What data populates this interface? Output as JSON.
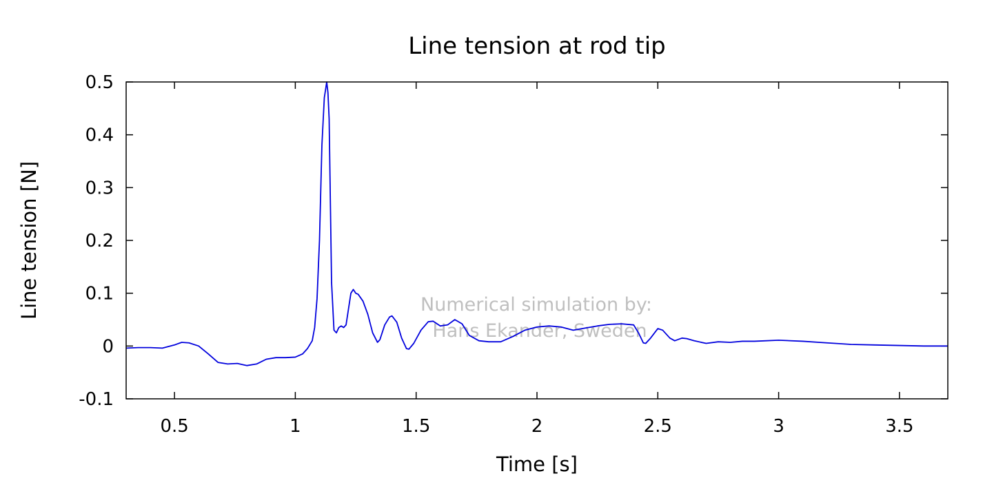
{
  "chart_data": {
    "type": "line",
    "title": "Line tension at rod tip",
    "xlabel": "Time [s]",
    "ylabel": "Line tension [N]",
    "xlim": [
      0.3,
      3.7
    ],
    "ylim": [
      -0.1,
      0.5
    ],
    "x_ticks": [
      0.5,
      1,
      1.5,
      2,
      2.5,
      3,
      3.5
    ],
    "x_tick_labels": [
      "0.5",
      "1",
      "1.5",
      "2",
      "2.5",
      "3",
      "3.5"
    ],
    "y_ticks": [
      -0.1,
      0,
      0.1,
      0.2,
      0.3,
      0.4,
      0.5
    ],
    "y_tick_labels": [
      "-0.1",
      "0",
      "0.1",
      "0.2",
      "0.3",
      "0.4",
      "0.5"
    ],
    "grid": false,
    "legend": "none",
    "annotations": [
      "Numerical simulation by:",
      "Hans Ekander, Sweden"
    ],
    "series": [
      {
        "color": "#0000dd",
        "x": [
          0.3,
          0.35,
          0.4,
          0.45,
          0.5,
          0.53,
          0.56,
          0.6,
          0.64,
          0.68,
          0.72,
          0.76,
          0.8,
          0.84,
          0.88,
          0.92,
          0.96,
          1.0,
          1.03,
          1.05,
          1.07,
          1.08,
          1.09,
          1.1,
          1.11,
          1.12,
          1.13,
          1.135,
          1.14,
          1.15,
          1.16,
          1.17,
          1.18,
          1.19,
          1.2,
          1.21,
          1.22,
          1.23,
          1.24,
          1.25,
          1.26,
          1.28,
          1.3,
          1.32,
          1.34,
          1.35,
          1.37,
          1.39,
          1.4,
          1.42,
          1.44,
          1.46,
          1.47,
          1.49,
          1.52,
          1.55,
          1.57,
          1.6,
          1.63,
          1.66,
          1.69,
          1.72,
          1.76,
          1.8,
          1.85,
          1.9,
          1.95,
          2.0,
          2.05,
          2.1,
          2.15,
          2.2,
          2.25,
          2.3,
          2.35,
          2.4,
          2.42,
          2.44,
          2.45,
          2.47,
          2.5,
          2.52,
          2.55,
          2.57,
          2.6,
          2.62,
          2.65,
          2.7,
          2.75,
          2.8,
          2.85,
          2.9,
          3.0,
          3.1,
          3.2,
          3.3,
          3.4,
          3.5,
          3.6,
          3.7
        ],
        "y": [
          -0.004,
          -0.003,
          -0.003,
          -0.004,
          0.002,
          0.007,
          0.006,
          0.0,
          -0.015,
          -0.031,
          -0.034,
          -0.033,
          -0.037,
          -0.034,
          -0.025,
          -0.022,
          -0.022,
          -0.021,
          -0.015,
          -0.005,
          0.01,
          0.035,
          0.09,
          0.2,
          0.38,
          0.47,
          0.5,
          0.48,
          0.43,
          0.12,
          0.03,
          0.025,
          0.035,
          0.038,
          0.035,
          0.04,
          0.07,
          0.1,
          0.107,
          0.1,
          0.098,
          0.085,
          0.06,
          0.025,
          0.007,
          0.012,
          0.04,
          0.055,
          0.057,
          0.045,
          0.015,
          -0.005,
          -0.006,
          0.005,
          0.03,
          0.046,
          0.047,
          0.038,
          0.04,
          0.05,
          0.042,
          0.02,
          0.01,
          0.008,
          0.008,
          0.018,
          0.03,
          0.036,
          0.038,
          0.036,
          0.03,
          0.034,
          0.038,
          0.041,
          0.042,
          0.04,
          0.025,
          0.006,
          0.005,
          0.015,
          0.033,
          0.03,
          0.015,
          0.01,
          0.015,
          0.014,
          0.01,
          0.005,
          0.008,
          0.007,
          0.009,
          0.009,
          0.011,
          0.009,
          0.006,
          0.003,
          0.002,
          0.001,
          0.0,
          0.0
        ]
      }
    ]
  }
}
